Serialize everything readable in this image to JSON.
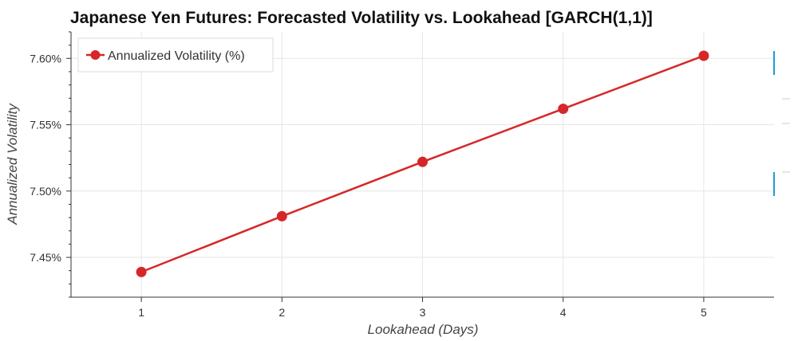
{
  "chart_data": {
    "type": "line",
    "title": "Japanese Yen Futures: Forecasted Volatility vs. Lookahead [GARCH(1,1)]",
    "xlabel": "Lookahead (Days)",
    "ylabel": "Annualized Volatility",
    "x": [
      1,
      2,
      3,
      4,
      5
    ],
    "series": [
      {
        "name": "Annualized Volatility (%)",
        "values": [
          7.439,
          7.481,
          7.522,
          7.562,
          7.602
        ],
        "color": "#d62728"
      }
    ],
    "xlim": [
      0.5,
      5.5
    ],
    "ylim": [
      7.42,
      7.62
    ],
    "x_ticks": [
      1,
      2,
      3,
      4,
      5
    ],
    "x_tick_labels": [
      "1",
      "2",
      "3",
      "4",
      "5"
    ],
    "y_ticks": [
      7.45,
      7.5,
      7.55,
      7.6
    ],
    "y_tick_labels": [
      "7.45%",
      "7.50%",
      "7.55%",
      "7.60%"
    ],
    "grid": true,
    "legend_position": "top-left",
    "marker": "circle"
  }
}
